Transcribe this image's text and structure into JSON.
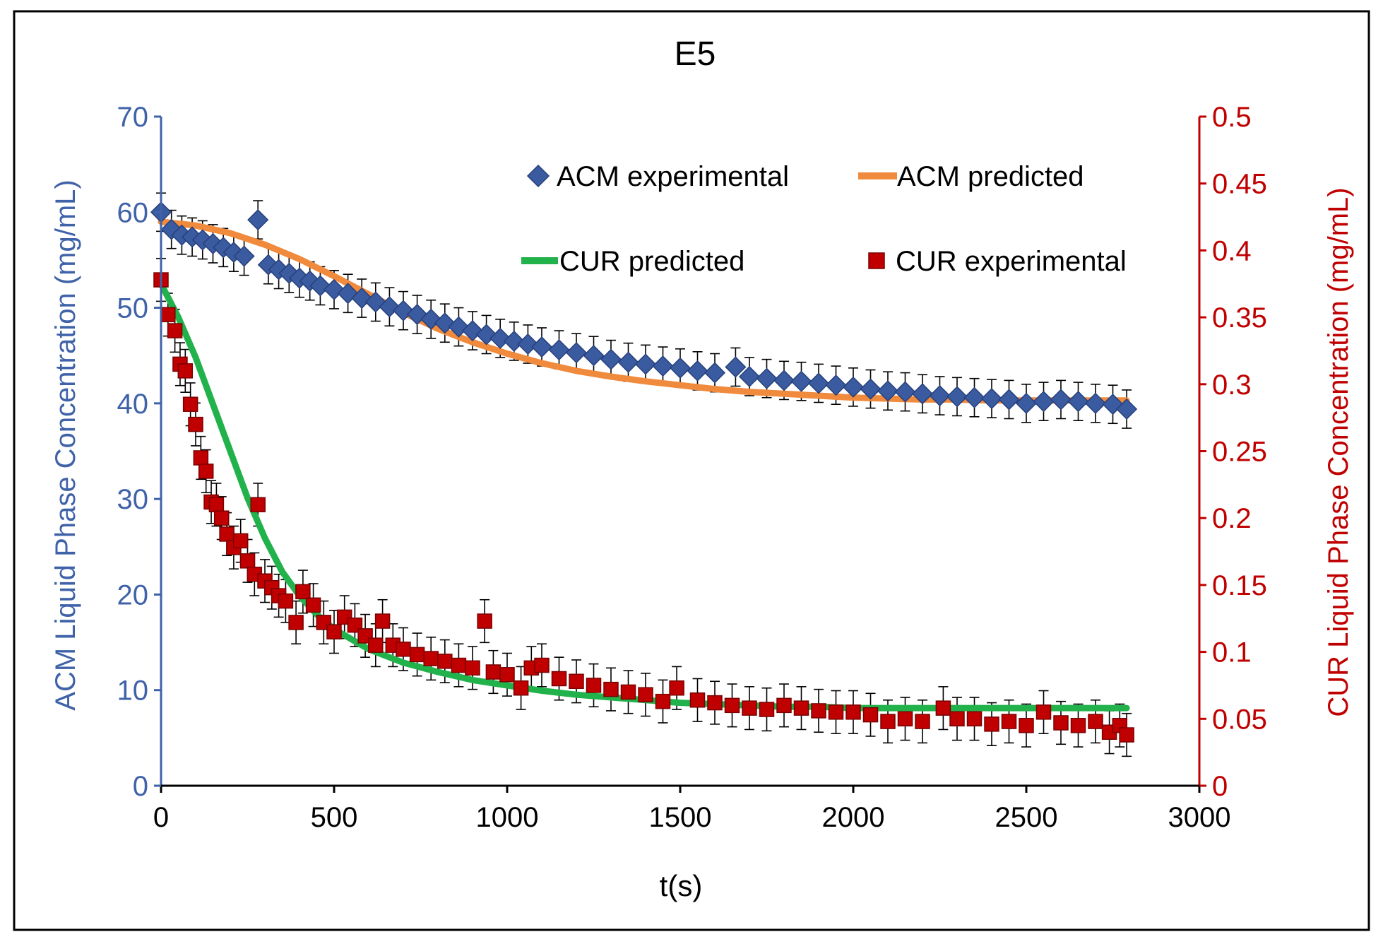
{
  "chart_data": {
    "type": "scatter",
    "title": "E5",
    "xlabel": "t(s)",
    "ylabel_left": "ACM Liquid Phase Concentration (mg/mL)",
    "ylabel_right": "CUR Liquid Phase Concentration (mg/mL)",
    "xlim": [
      0,
      3000
    ],
    "ylim_left": [
      0,
      70
    ],
    "ylim_right": [
      0,
      0.5
    ],
    "x_ticks": [
      "0",
      "500",
      "1000",
      "1500",
      "2000",
      "2500",
      "3000"
    ],
    "y_left_ticks": [
      "0",
      "10",
      "20",
      "30",
      "40",
      "50",
      "60",
      "70"
    ],
    "y_right_ticks": [
      "0",
      "0.05",
      "0.1",
      "0.15",
      "0.2",
      "0.25",
      "0.3",
      "0.35",
      "0.4",
      "0.45",
      "0.5"
    ],
    "grid": false,
    "legend": {
      "placement": "top-right",
      "entries": [
        "ACM experimental",
        "ACM predicted",
        "CUR predicted",
        "CUR experimental"
      ]
    },
    "colors": {
      "acm_axis": "#3f62a8",
      "cur_axis": "#c00000",
      "acm_experimental": "#3a5ba0",
      "acm_predicted": "#f08a3c",
      "cur_predicted": "#22b24c",
      "cur_experimental": "#c00000",
      "error_bars": "#000000",
      "frame": "#000000"
    },
    "series": [
      {
        "name": "ACM experimental",
        "axis": "left",
        "marker": "diamond",
        "x": [
          0,
          30,
          60,
          90,
          120,
          150,
          180,
          210,
          240,
          280,
          310,
          340,
          370,
          400,
          430,
          460,
          500,
          540,
          580,
          620,
          660,
          700,
          740,
          780,
          820,
          860,
          900,
          940,
          980,
          1020,
          1060,
          1100,
          1150,
          1200,
          1250,
          1300,
          1350,
          1400,
          1450,
          1500,
          1550,
          1600,
          1660,
          1700,
          1750,
          1800,
          1850,
          1900,
          1950,
          2000,
          2050,
          2100,
          2150,
          2200,
          2250,
          2300,
          2350,
          2400,
          2450,
          2500,
          2550,
          2600,
          2650,
          2700,
          2750,
          2790
        ],
        "y": [
          60,
          58.2,
          57.6,
          57.4,
          57.1,
          56.7,
          56.3,
          55.8,
          55.4,
          59.2,
          54.5,
          54.0,
          53.6,
          53.1,
          52.8,
          52.3,
          51.9,
          51.5,
          51.0,
          50.6,
          50.1,
          49.7,
          49.3,
          48.8,
          48.4,
          48.0,
          47.6,
          47.2,
          46.8,
          46.5,
          46.2,
          45.9,
          45.6,
          45.3,
          45.0,
          44.6,
          44.3,
          44.1,
          43.9,
          43.7,
          43.4,
          43.2,
          43.8,
          42.8,
          42.6,
          42.4,
          42.3,
          42.1,
          41.9,
          41.7,
          41.5,
          41.3,
          41.2,
          41.0,
          40.8,
          40.7,
          40.6,
          40.5,
          40.4,
          40.0,
          40.2,
          40.4,
          40.2,
          40.0,
          39.9,
          39.4
        ],
        "error": 2
      },
      {
        "name": "ACM predicted",
        "axis": "left",
        "marker": "line",
        "x": [
          0,
          100,
          200,
          300,
          400,
          500,
          600,
          700,
          800,
          900,
          1000,
          1100,
          1200,
          1300,
          1400,
          1500,
          1600,
          1700,
          1800,
          1900,
          2000,
          2100,
          2200,
          2300,
          2400,
          2500,
          2600,
          2700,
          2790
        ],
        "y": [
          59.0,
          58.6,
          57.8,
          56.6,
          55.1,
          53.3,
          51.4,
          49.5,
          47.8,
          46.4,
          45.2,
          44.2,
          43.4,
          42.8,
          42.3,
          41.9,
          41.5,
          41.2,
          41.0,
          40.8,
          40.6,
          40.5,
          40.4,
          40.4,
          40.3,
          40.3,
          40.3,
          40.3,
          40.3
        ]
      },
      {
        "name": "CUR predicted",
        "axis": "right",
        "marker": "line",
        "x": [
          0,
          50,
          100,
          150,
          200,
          250,
          300,
          350,
          400,
          450,
          500,
          600,
          700,
          800,
          900,
          1000,
          1100,
          1200,
          1300,
          1400,
          1500,
          1600,
          1700,
          1800,
          1900,
          2000,
          2100,
          2200,
          2300,
          2400,
          2500,
          2600,
          2700,
          2790
        ],
        "y": [
          0.375,
          0.35,
          0.32,
          0.285,
          0.25,
          0.215,
          0.185,
          0.16,
          0.142,
          0.128,
          0.117,
          0.102,
          0.092,
          0.085,
          0.079,
          0.075,
          0.071,
          0.068,
          0.066,
          0.064,
          0.062,
          0.061,
          0.06,
          0.059,
          0.059,
          0.058,
          0.058,
          0.058,
          0.058,
          0.058,
          0.058,
          0.058,
          0.058,
          0.058
        ]
      },
      {
        "name": "CUR experimental",
        "axis": "right",
        "marker": "square",
        "x": [
          0,
          20,
          40,
          55,
          70,
          85,
          100,
          115,
          130,
          145,
          160,
          175,
          190,
          210,
          230,
          250,
          270,
          280,
          300,
          320,
          340,
          360,
          390,
          410,
          440,
          470,
          500,
          530,
          560,
          590,
          620,
          640,
          670,
          700,
          740,
          780,
          820,
          860,
          900,
          935,
          960,
          1000,
          1040,
          1070,
          1100,
          1150,
          1200,
          1250,
          1300,
          1350,
          1400,
          1450,
          1490,
          1550,
          1600,
          1650,
          1700,
          1750,
          1800,
          1850,
          1900,
          1950,
          2000,
          2050,
          2100,
          2150,
          2200,
          2260,
          2300,
          2350,
          2400,
          2450,
          2500,
          2550,
          2600,
          2650,
          2700,
          2740,
          2770,
          2790
        ],
        "y": [
          0.378,
          0.352,
          0.34,
          0.315,
          0.31,
          0.285,
          0.27,
          0.245,
          0.235,
          0.212,
          0.21,
          0.2,
          0.188,
          0.178,
          0.183,
          0.168,
          0.158,
          0.21,
          0.153,
          0.148,
          0.142,
          0.138,
          0.122,
          0.145,
          0.135,
          0.122,
          0.115,
          0.126,
          0.12,
          0.112,
          0.105,
          0.123,
          0.105,
          0.102,
          0.098,
          0.095,
          0.093,
          0.09,
          0.088,
          0.123,
          0.085,
          0.083,
          0.073,
          0.088,
          0.09,
          0.08,
          0.078,
          0.075,
          0.072,
          0.07,
          0.068,
          0.063,
          0.073,
          0.064,
          0.062,
          0.06,
          0.058,
          0.057,
          0.06,
          0.058,
          0.056,
          0.055,
          0.055,
          0.053,
          0.048,
          0.05,
          0.048,
          0.058,
          0.05,
          0.05,
          0.046,
          0.048,
          0.045,
          0.055,
          0.047,
          0.045,
          0.048,
          0.04,
          0.045,
          0.038
        ],
        "error": 0.016
      }
    ]
  }
}
